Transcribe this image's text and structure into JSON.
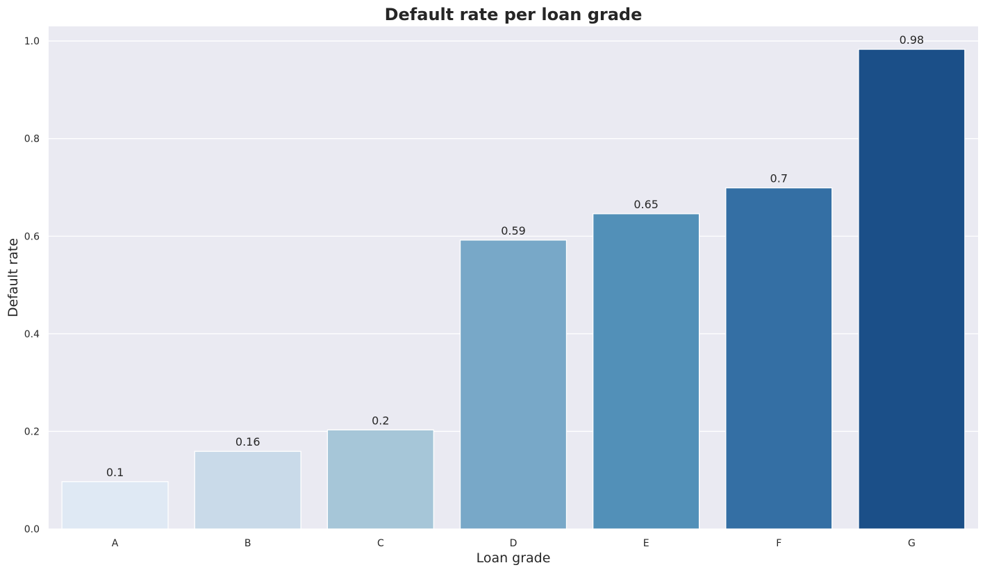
{
  "chart_data": {
    "type": "bar",
    "title": "Default rate per loan grade",
    "xlabel": "Loan grade",
    "ylabel": "Default rate",
    "categories": [
      "A",
      "B",
      "C",
      "D",
      "E",
      "F",
      "G"
    ],
    "values": [
      0.097,
      0.159,
      0.203,
      0.592,
      0.646,
      0.699,
      0.983
    ],
    "data_labels": [
      "0.1",
      "0.16",
      "0.2",
      "0.59",
      "0.65",
      "0.7",
      "0.98"
    ],
    "colors": [
      "#dfe9f4",
      "#c9dae9",
      "#a6c6d8",
      "#78a8c8",
      "#5290b8",
      "#346fa4",
      "#1b4f88"
    ],
    "ylim": [
      0,
      1.03
    ],
    "yticks": [
      0.0,
      0.2,
      0.4,
      0.6,
      0.8,
      1.0
    ],
    "ytick_labels": [
      "0.0",
      "0.2",
      "0.4",
      "0.6",
      "0.8",
      "1.0"
    ],
    "grid": true,
    "background": "#eaeaf2",
    "grid_color": "#ffffff"
  }
}
